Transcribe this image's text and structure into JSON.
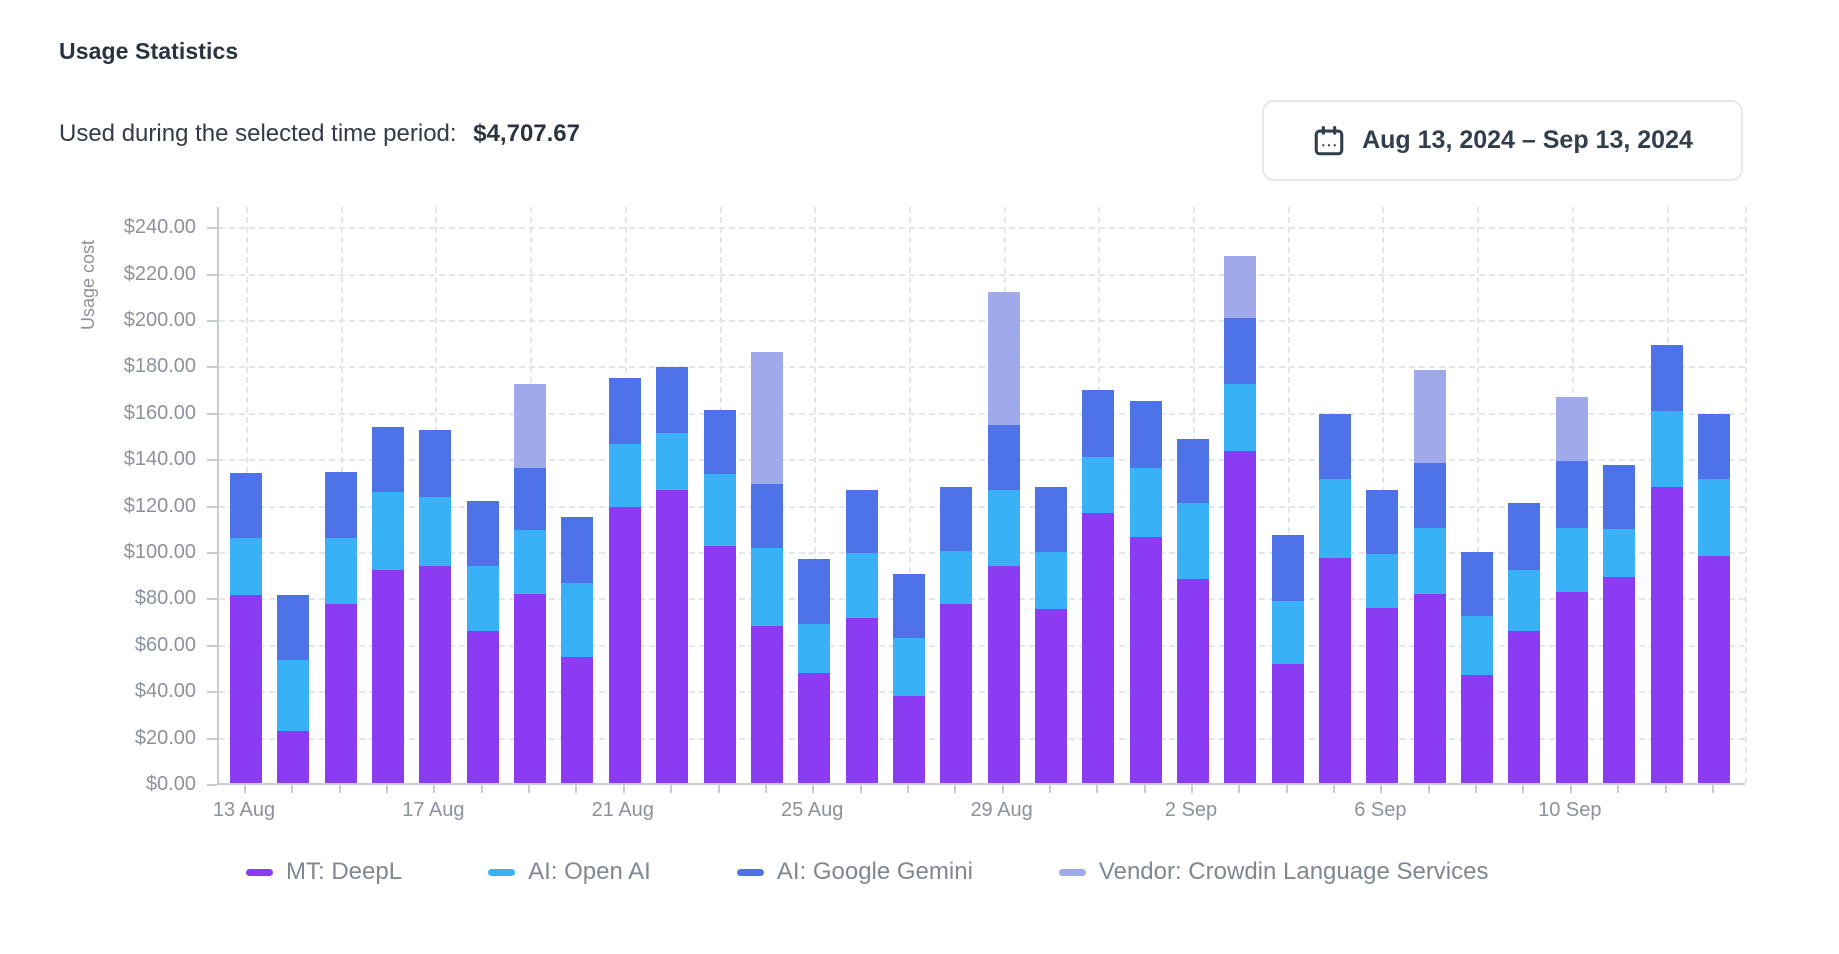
{
  "page": {
    "title": "Usage Statistics"
  },
  "summary": {
    "label": "Used during the selected time period:",
    "value": "$4,707.67"
  },
  "date_range": {
    "icon": "calendar-icon",
    "label": "Aug 13, 2024 – Sep 13, 2024"
  },
  "colors": {
    "mt_deepl": "#8b3bf2",
    "ai_openai": "#38b1f7",
    "ai_google_gemini": "#4e73e8",
    "vendor_crowdin": "#a0a9ea",
    "axis_line": "#c9cdd3",
    "grid_line": "#e3e6ea",
    "tick_text": "#8b929c",
    "legend_text": "#7f8790",
    "title_text": "#2b333f"
  },
  "chart_data": {
    "type": "bar",
    "stacked": true,
    "ylabel": "Usage cost",
    "xlabel": "",
    "ylim": [
      0,
      249
    ],
    "ytick_interval": 20,
    "y_ticks": [
      "$0.00",
      "$20.00",
      "$40.00",
      "$60.00",
      "$80.00",
      "$100.00",
      "$120.00",
      "$140.00",
      "$160.00",
      "$180.00",
      "$200.00",
      "$220.00",
      "$240.00"
    ],
    "grid": true,
    "legend_position": "bottom",
    "x_label_every": 4,
    "x_labels_shown": [
      "13 Aug",
      "17 Aug",
      "21 Aug",
      "25 Aug",
      "29 Aug",
      "2 Sep",
      "6 Sep",
      "10 Sep"
    ],
    "categories": [
      "13 Aug",
      "14 Aug",
      "15 Aug",
      "16 Aug",
      "17 Aug",
      "18 Aug",
      "19 Aug",
      "20 Aug",
      "21 Aug",
      "22 Aug",
      "23 Aug",
      "24 Aug",
      "25 Aug",
      "26 Aug",
      "27 Aug",
      "28 Aug",
      "29 Aug",
      "30 Aug",
      "31 Aug",
      "1 Sep",
      "2 Sep",
      "3 Sep",
      "4 Sep",
      "5 Sep",
      "6 Sep",
      "7 Sep",
      "8 Sep",
      "9 Sep",
      "10 Sep",
      "11 Sep",
      "12 Sep",
      "13 Sep"
    ],
    "series": [
      {
        "name": "MT: DeepL",
        "color": "#8b3bf2",
        "values": [
          81,
          22.5,
          77,
          92,
          93.5,
          65.5,
          81.5,
          54.5,
          119,
          126.5,
          102,
          67.5,
          47.5,
          71,
          37.5,
          77,
          93.5,
          75,
          116.5,
          106,
          88,
          143,
          51.5,
          97,
          75.5,
          81.5,
          46.5,
          65.5,
          82.5,
          89,
          127.5,
          98
        ]
      },
      {
        "name": "AI: Open AI",
        "color": "#38b1f7",
        "values": [
          24.5,
          30.5,
          28.5,
          33.5,
          30,
          28,
          27.5,
          31.5,
          27,
          24.5,
          31,
          34,
          21,
          28,
          25,
          23,
          33,
          24.5,
          24,
          30,
          32.5,
          29,
          27,
          34,
          23,
          28.5,
          25.5,
          26.5,
          27.5,
          20.5,
          33,
          33
        ]
      },
      {
        "name": "AI: Google Gemini",
        "color": "#4e73e8",
        "values": [
          28,
          28,
          28.5,
          28,
          28.5,
          28,
          27,
          28.5,
          28.5,
          28.5,
          28,
          27.5,
          28,
          27.5,
          27.5,
          27.5,
          28,
          28,
          29,
          28.5,
          28,
          28.5,
          28.5,
          28,
          28,
          28,
          27.5,
          28.5,
          29,
          27.5,
          28.5,
          28
        ]
      },
      {
        "name": "Vendor: Crowdin Language Services",
        "color": "#a0a9ea",
        "values": [
          0,
          0,
          0,
          0,
          0,
          0,
          36,
          0,
          0,
          0,
          0,
          57,
          0,
          0,
          0,
          0,
          57,
          0,
          0,
          0,
          0,
          26.5,
          0,
          0,
          0,
          40,
          0,
          0,
          27.5,
          0,
          0,
          0
        ]
      }
    ]
  }
}
